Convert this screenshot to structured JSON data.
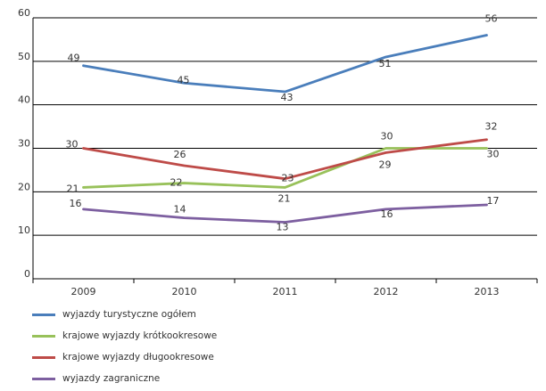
{
  "chart_data": {
    "type": "line",
    "categories": [
      "2009",
      "2010",
      "2011",
      "2012",
      "2013"
    ],
    "ylim": [
      0,
      60
    ],
    "yticks": [
      0,
      10,
      20,
      30,
      40,
      50,
      60
    ],
    "grid": true,
    "legend_position": "bottom-left",
    "series": [
      {
        "name": "wyjazdy turystyczne ogółem",
        "color": "#4a7ebb",
        "values": [
          49,
          45,
          43,
          51,
          56
        ]
      },
      {
        "name": "krajowe wyjazdy krótkookresowe",
        "color": "#98c15a",
        "values": [
          21,
          22,
          21,
          30,
          30
        ]
      },
      {
        "name": "krajowe wyjazdy długookresowe",
        "color": "#be4b48",
        "values": [
          30,
          26,
          23,
          29,
          32
        ]
      },
      {
        "name": "wyjazdy zagraniczne",
        "color": "#7d5fa0",
        "values": [
          16,
          14,
          13,
          16,
          17
        ]
      }
    ]
  }
}
